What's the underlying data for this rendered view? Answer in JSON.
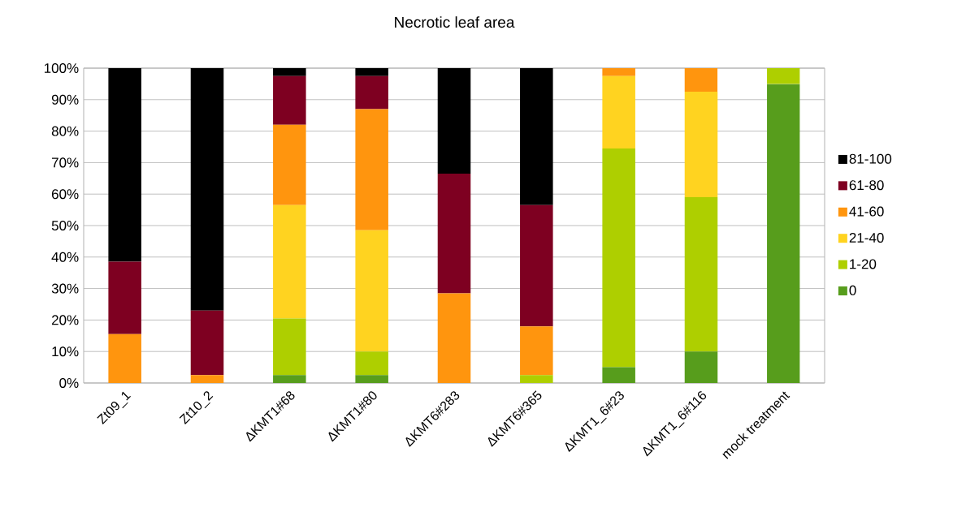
{
  "chart_data": {
    "type": "bar",
    "stacked": true,
    "title": "Necrotic leaf area",
    "categories": [
      "Zt09_1",
      "Zt10_2",
      "ΔKMT1#68",
      "ΔKMT1#80",
      "ΔKMT6#283",
      "ΔKMT6#365",
      "ΔKMT1_6#23",
      "ΔKMT1_6#116",
      "mock treatment"
    ],
    "series": [
      {
        "name": "0",
        "color": "#579d1c",
        "values": [
          0,
          0,
          2.5,
          2.5,
          0,
          0,
          5,
          10,
          95
        ]
      },
      {
        "name": "1-20",
        "color": "#aecf00",
        "values": [
          0,
          0,
          18,
          7.5,
          0,
          2.5,
          69.5,
          49,
          5
        ]
      },
      {
        "name": "21-40",
        "color": "#ffd320",
        "values": [
          0,
          0,
          36,
          38.5,
          0,
          0,
          23,
          33.5,
          0
        ]
      },
      {
        "name": "41-60",
        "color": "#ff950e",
        "values": [
          15.5,
          2.5,
          25.5,
          38.5,
          28.5,
          15.5,
          2.5,
          7.5,
          0
        ]
      },
      {
        "name": "61-80",
        "color": "#7e0021",
        "values": [
          23,
          20.5,
          15.5,
          10.5,
          38,
          38.5,
          0,
          0,
          0
        ]
      },
      {
        "name": "81-100",
        "color": "#000000",
        "values": [
          61.5,
          77,
          2.5,
          2.5,
          33.5,
          43.5,
          0,
          0,
          0
        ]
      }
    ],
    "ylim": [
      0,
      100
    ],
    "yticks": [
      {
        "value": 0,
        "label": "0%"
      },
      {
        "value": 10,
        "label": "10%"
      },
      {
        "value": 20,
        "label": "20%"
      },
      {
        "value": 30,
        "label": "30%"
      },
      {
        "value": 40,
        "label": "40%"
      },
      {
        "value": 50,
        "label": "50%"
      },
      {
        "value": 60,
        "label": "60%"
      },
      {
        "value": 70,
        "label": "70%"
      },
      {
        "value": 80,
        "label": "80%"
      },
      {
        "value": 90,
        "label": "90%"
      },
      {
        "value": 100,
        "label": "100%"
      }
    ],
    "grid": "y",
    "legend": "right"
  }
}
